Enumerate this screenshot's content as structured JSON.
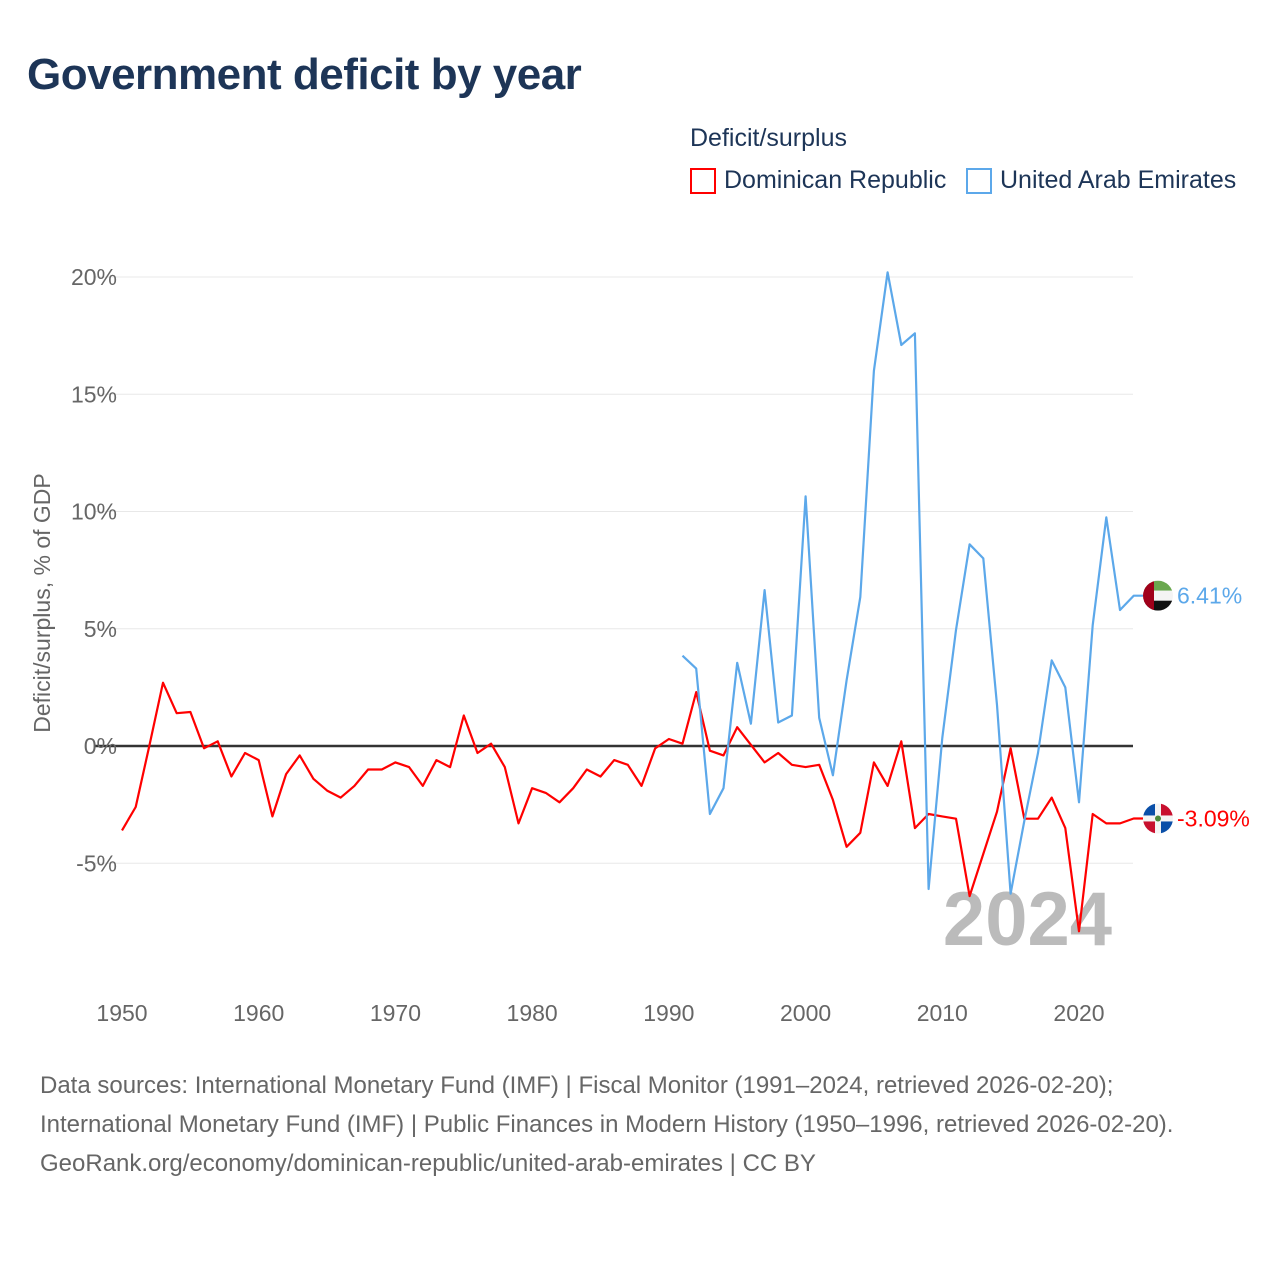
{
  "title": "Government deficit by year",
  "legend": {
    "title": "Deficit/surplus",
    "items": [
      "Dominican Republic",
      "United Arab Emirates"
    ]
  },
  "footer": {
    "line1": "Data sources: International Monetary Fund (IMF) | Fiscal Monitor (1991–2024, retrieved 2026-02-20); International Monetary Fund (IMF) | Public Finances in Modern History (1950–1996, retrieved 2026-02-20).",
    "line2": "GeoRank.org/economy/dominican-republic/united-arab-emirates | CC BY"
  },
  "chart_data": {
    "type": "line",
    "title": "Government deficit by year",
    "xlabel": "",
    "ylabel": "Deficit/surplus, % of GDP",
    "xlim": [
      1950,
      2024
    ],
    "ylim": [
      -10,
      20
    ],
    "yticks": [
      {
        "v": 20,
        "label": "20%"
      },
      {
        "v": 15,
        "label": "15%"
      },
      {
        "v": 10,
        "label": "10%"
      },
      {
        "v": 5,
        "label": "5%"
      },
      {
        "v": 0,
        "label": "0%"
      },
      {
        "v": -5,
        "label": "-5%"
      }
    ],
    "xticks": [
      {
        "v": 1950,
        "label": "1950"
      },
      {
        "v": 1960,
        "label": "1960"
      },
      {
        "v": 1970,
        "label": "1970"
      },
      {
        "v": 1980,
        "label": "1980"
      },
      {
        "v": 1990,
        "label": "1990"
      },
      {
        "v": 2000,
        "label": "2000"
      },
      {
        "v": 2010,
        "label": "2010"
      },
      {
        "v": 2020,
        "label": "2020"
      }
    ],
    "year_label": "2024",
    "series": [
      {
        "name": "Dominican Republic",
        "color": "#ff0000",
        "start": 1950,
        "end_label": "-3.09%",
        "values": [
          -3.6,
          -2.6,
          0.0,
          2.7,
          1.4,
          1.45,
          -0.1,
          0.2,
          -1.3,
          -0.3,
          -0.6,
          -3.0,
          -1.2,
          -0.4,
          -1.4,
          -1.9,
          -2.2,
          -1.7,
          -1.0,
          -1.0,
          -0.7,
          -0.9,
          -1.7,
          -0.6,
          -0.9,
          1.3,
          -0.3,
          0.1,
          -0.9,
          -3.3,
          -1.8,
          -2.0,
          -2.4,
          -1.8,
          -1.0,
          -1.3,
          -0.6,
          -0.8,
          -1.7,
          -0.1,
          0.3,
          0.1,
          2.3,
          -0.2,
          -0.4,
          0.8,
          0.05,
          -0.7,
          -0.3,
          -0.8,
          -0.9,
          -0.8,
          -2.3,
          -4.3,
          -3.7,
          -0.7,
          -1.7,
          0.2,
          -3.5,
          -2.9,
          -3.0,
          -3.1,
          -6.4,
          -4.6,
          -2.8,
          -0.1,
          -3.1,
          -3.1,
          -2.2,
          -3.5,
          -7.9,
          -2.9,
          -3.3,
          -3.3,
          -3.09
        ]
      },
      {
        "name": "United Arab Emirates",
        "color": "#5ca8ea",
        "start": 1991,
        "end_label": "6.41%",
        "values": [
          3.85,
          3.3,
          -2.9,
          -1.8,
          3.55,
          0.95,
          6.65,
          1.0,
          1.3,
          10.65,
          1.2,
          -1.25,
          2.8,
          6.35,
          16.0,
          20.2,
          17.1,
          17.6,
          -6.1,
          0.35,
          4.95,
          8.6,
          8.0,
          1.75,
          -6.3,
          -3.2,
          -0.3,
          3.65,
          2.5,
          -2.4,
          5.15,
          9.75,
          5.8,
          6.41
        ]
      }
    ]
  }
}
